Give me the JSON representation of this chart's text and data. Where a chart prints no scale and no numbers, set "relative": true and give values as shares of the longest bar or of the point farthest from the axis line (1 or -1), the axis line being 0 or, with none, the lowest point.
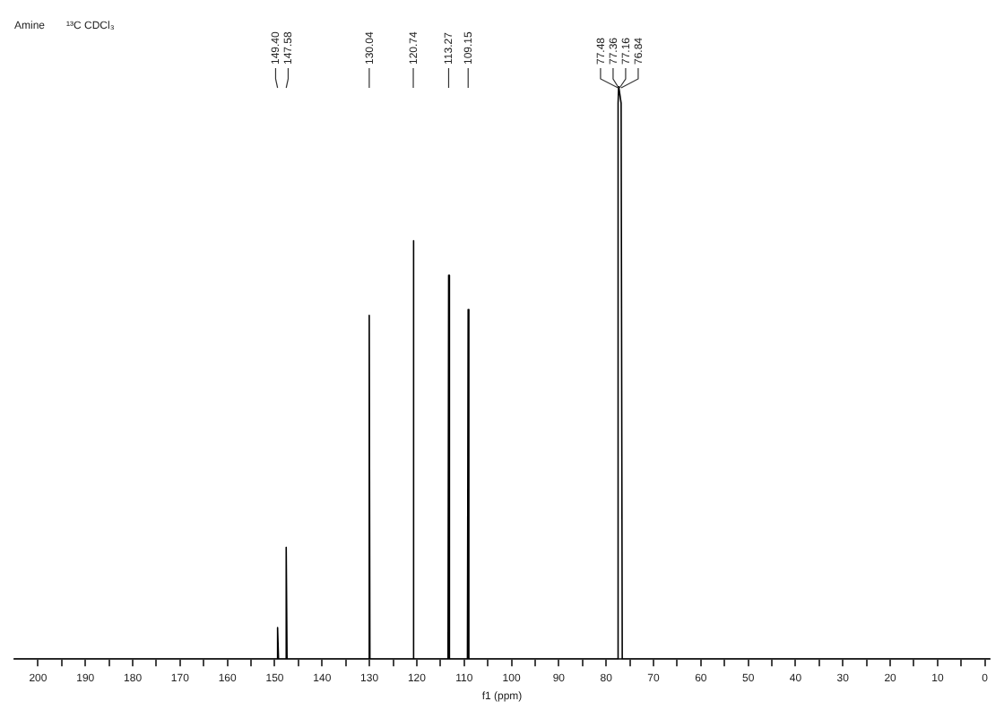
{
  "chart_data": {
    "type": "line",
    "title": "Amine",
    "subtitle": "¹³C CDCl₃",
    "xlabel": "f1 (ppm)",
    "relative": true,
    "tick_labels": "x",
    "grid": false,
    "legend": false,
    "marker": "none",
    "line_style": "solid",
    "xlim": [
      205,
      -1
    ],
    "xticks": [
      200,
      {
        "value": 195,
        "label": null
      },
      190,
      {
        "value": 185,
        "label": null
      },
      180,
      {
        "value": 175,
        "label": null
      },
      170,
      {
        "value": 165,
        "label": null
      },
      160,
      {
        "value": 155,
        "label": null
      },
      150,
      {
        "value": 145,
        "label": null
      },
      140,
      {
        "value": 135,
        "label": null
      },
      130,
      {
        "value": 125,
        "label": null
      },
      120,
      {
        "value": 115,
        "label": null
      },
      110,
      {
        "value": 105,
        "label": null
      },
      100,
      {
        "value": 95,
        "label": null
      },
      90,
      {
        "value": 85,
        "label": null
      },
      80,
      {
        "value": 75,
        "label": null
      },
      70,
      {
        "value": 65,
        "label": null
      },
      60,
      {
        "value": 55,
        "label": null
      },
      50,
      {
        "value": 45,
        "label": null
      },
      40,
      {
        "value": 35,
        "label": null
      },
      30,
      {
        "value": 25,
        "label": null
      },
      20,
      {
        "value": 15,
        "label": null
      },
      10,
      {
        "value": 5,
        "label": null
      },
      0
    ],
    "series": [
      {
        "color": "#000000",
        "x": [
          205,
          149.6,
          149.4,
          149.2,
          147.8,
          147.58,
          147.4,
          130.2,
          130.04,
          129.9,
          120.9,
          120.74,
          120.6,
          113.4,
          113.27,
          113.1,
          109.3,
          109.15,
          109.0,
          77.7,
          77.48,
          77.36,
          77.16,
          76.84,
          76.6,
          -1
        ],
        "values": [
          0,
          0,
          0.055,
          0,
          0,
          0.195,
          0,
          0,
          0.6,
          0,
          0,
          0.73,
          0,
          0,
          0.67,
          0,
          0,
          0.61,
          0,
          0,
          0.97,
          1,
          1,
          0.97,
          0,
          0
        ]
      }
    ],
    "annotations": [
      {
        "text": "149.40",
        "x": 149.4
      },
      {
        "text": "147.58",
        "x": 147.58
      },
      {
        "text": "130.04",
        "x": 130.04
      },
      {
        "text": "120.74",
        "x": 120.74
      },
      {
        "text": "113.27",
        "x": 113.27
      },
      {
        "text": "109.15",
        "x": 109.15
      },
      {
        "text": "77.48",
        "x": 77.48
      },
      {
        "text": "77.36",
        "x": 77.36
      },
      {
        "text": "77.16",
        "x": 77.16
      },
      {
        "text": "76.84",
        "x": 76.84
      }
    ]
  }
}
